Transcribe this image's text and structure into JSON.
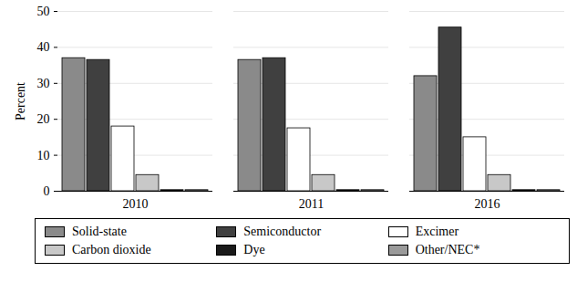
{
  "chart_data": {
    "type": "bar",
    "y_label": "Percent",
    "categories": [
      "2010",
      "2011",
      "2016"
    ],
    "series": [
      {
        "name": "Solid-state",
        "color": "#8a8a8a",
        "values": [
          37,
          36.5,
          32
        ]
      },
      {
        "name": "Semiconductor",
        "color": "#404040",
        "values": [
          36.5,
          37,
          45.5
        ]
      },
      {
        "name": "Excimer",
        "color": "#ffffff",
        "values": [
          18,
          17.5,
          15
        ]
      },
      {
        "name": "Carbon dioxide",
        "color": "#c8c8c8",
        "values": [
          4.5,
          4.5,
          4.5
        ]
      },
      {
        "name": "Dye",
        "color": "#1a1a1a",
        "values": [
          0.3,
          0.3,
          0.3
        ]
      },
      {
        "name": "Other/NEC*",
        "color": "#9a9a9a",
        "values": [
          0.3,
          0.3,
          0.3
        ]
      }
    ],
    "ylim": [
      0,
      50
    ],
    "yticks": [
      0,
      10,
      20,
      30,
      40,
      50
    ],
    "grid": true,
    "legend": "bottom"
  }
}
